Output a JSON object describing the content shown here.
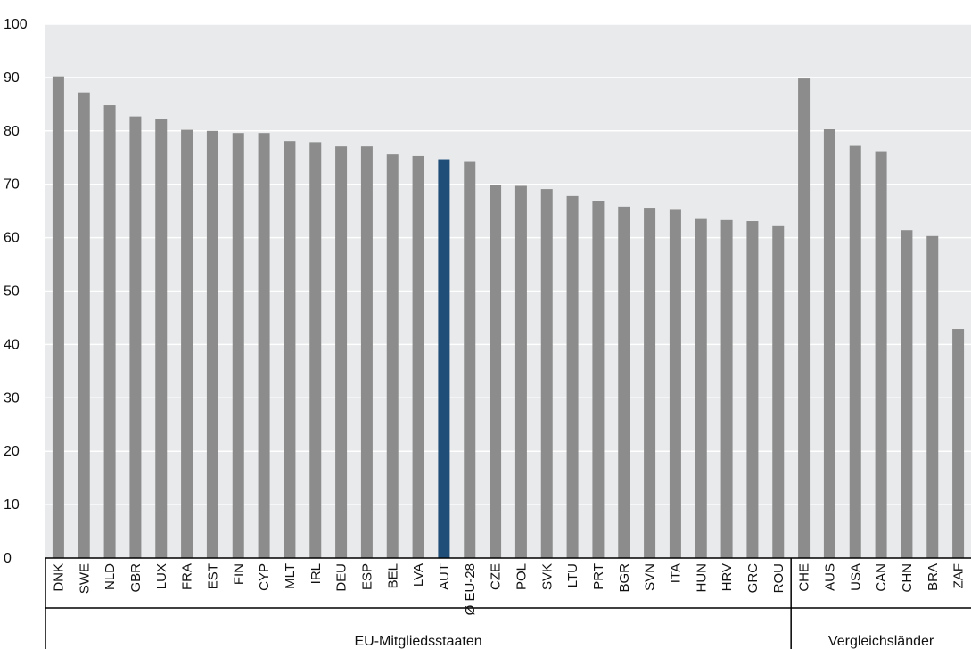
{
  "chart_data": {
    "type": "bar",
    "title": "",
    "xlabel": "",
    "ylabel": "",
    "ylim": [
      0,
      100
    ],
    "yticks": [
      0,
      10,
      20,
      30,
      40,
      50,
      60,
      70,
      80,
      90,
      100
    ],
    "grid": true,
    "legend": "none",
    "colors": {
      "background": "#e8eaeb",
      "bar": "#8c8c8c",
      "highlight": "#1f4e79",
      "grid": "#ffffff",
      "axis": "#000000"
    },
    "highlight_category": "AUT",
    "categories": [
      "DNK",
      "SWE",
      "NLD",
      "GBR",
      "LUX",
      "FRA",
      "EST",
      "FIN",
      "CYP",
      "MLT",
      "IRL",
      "DEU",
      "ESP",
      "BEL",
      "LVA",
      "AUT",
      "Ø EU-28",
      "CZE",
      "POL",
      "SVK",
      "LTU",
      "PRT",
      "BGR",
      "SVN",
      "ITA",
      "HUN",
      "HRV",
      "GRC",
      "ROU",
      "CHE",
      "AUS",
      "USA",
      "CAN",
      "CHN",
      "BRA",
      "ZAF"
    ],
    "values": [
      90.2,
      87.2,
      84.8,
      82.7,
      82.3,
      80.2,
      80.0,
      79.6,
      79.6,
      78.1,
      77.9,
      77.1,
      77.1,
      75.6,
      75.3,
      74.7,
      74.2,
      69.9,
      69.7,
      69.1,
      67.8,
      66.9,
      65.8,
      65.6,
      65.2,
      63.5,
      63.3,
      63.1,
      62.3,
      89.8,
      80.3,
      77.2,
      76.2,
      61.4,
      60.3,
      42.9
    ],
    "groups": [
      {
        "label": "EU-Mitgliedsstaaten",
        "count": 29
      },
      {
        "label": "Vergleichsländer",
        "count": 7
      }
    ]
  }
}
